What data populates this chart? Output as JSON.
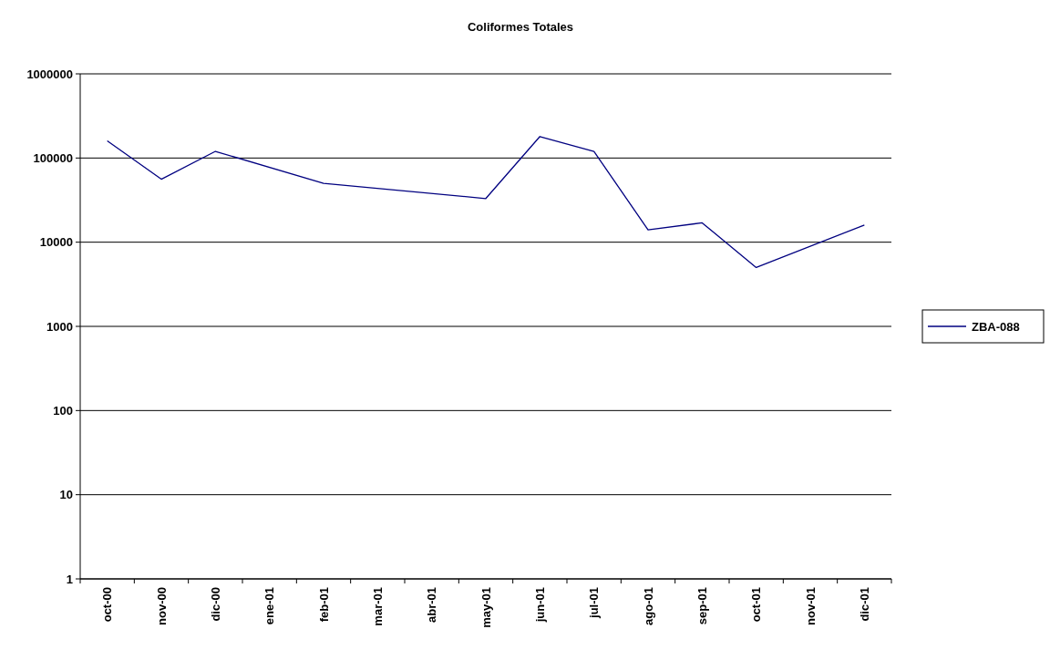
{
  "chart_data": {
    "type": "line",
    "title": "Coliformes Totales",
    "categories": [
      "oct-00",
      "nov-00",
      "dic-00",
      "ene-01",
      "feb-01",
      "mar-01",
      "abr-01",
      "may-01",
      "jun-01",
      "jul-01",
      "ago-01",
      "sep-01",
      "oct-01",
      "nov-01",
      "dic-01"
    ],
    "series": [
      {
        "name": "ZBA-088",
        "color": "#000080",
        "values": [
          160000,
          56000,
          120000,
          null,
          50000,
          null,
          null,
          33000,
          180000,
          120000,
          14000,
          17000,
          5000,
          null,
          16000
        ]
      }
    ],
    "log": "y",
    "ylim": [
      1,
      1000000
    ],
    "yticks": [
      1,
      10,
      100,
      1000,
      10000,
      100000,
      1000000
    ],
    "grid": "y",
    "legend": "right",
    "marker": "none",
    "line_style": "solid"
  }
}
